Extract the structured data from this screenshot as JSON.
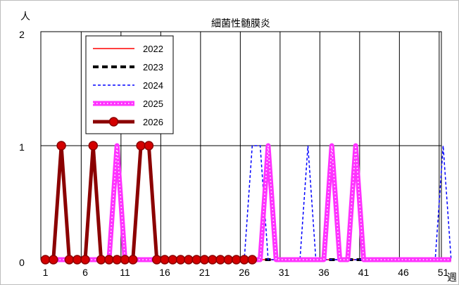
{
  "chart_data": {
    "type": "line",
    "title": "細菌性髄膜炎",
    "ylabel": "人",
    "xlabel": "週",
    "ylim": [
      0,
      2
    ],
    "xlim": [
      1,
      53
    ],
    "y_ticks": [
      "0",
      "1",
      "2"
    ],
    "x_ticks": [
      "1",
      "6",
      "11",
      "16",
      "21",
      "26",
      "31",
      "36",
      "41",
      "46",
      "51"
    ],
    "x_tick_values": [
      1,
      6,
      11,
      16,
      21,
      26,
      31,
      36,
      41,
      46,
      51
    ],
    "grid": {
      "vertical": true,
      "horizontal": true
    },
    "legend_position": "top-left",
    "series": [
      {
        "name": "2022",
        "color": "#ff0000",
        "style": "solid-thin",
        "x": [
          1,
          2,
          3,
          4,
          5,
          6,
          7,
          8,
          9,
          10,
          11,
          12,
          13,
          14,
          15,
          16,
          17,
          18,
          19,
          20,
          21,
          22,
          23,
          24,
          25,
          26,
          27,
          28,
          29,
          30,
          31,
          32,
          33,
          34,
          35,
          36,
          37,
          38,
          39,
          40,
          41,
          42,
          43,
          44,
          45,
          46,
          47,
          48,
          49,
          50,
          51,
          52
        ],
        "values": [
          0,
          0,
          0,
          0,
          0,
          0,
          0,
          0,
          0,
          0,
          0,
          0,
          0,
          0,
          0,
          0,
          0,
          0,
          0,
          0,
          0,
          0,
          0,
          0,
          0,
          0,
          0,
          0,
          0,
          0,
          0,
          0,
          0,
          0,
          0,
          0,
          0,
          0,
          0,
          0,
          0,
          0,
          0,
          0,
          0,
          0,
          0,
          0,
          0,
          0,
          0,
          0
        ]
      },
      {
        "name": "2023",
        "color": "#000000",
        "style": "dashed-thick",
        "x": [
          1,
          2,
          3,
          4,
          5,
          6,
          7,
          8,
          9,
          10,
          11,
          12,
          13,
          14,
          15,
          16,
          17,
          18,
          19,
          20,
          21,
          22,
          23,
          24,
          25,
          26,
          27,
          28,
          29,
          30,
          31,
          32,
          33,
          34,
          35,
          36,
          37,
          38,
          39,
          40,
          41,
          42,
          43,
          44,
          45,
          46,
          47,
          48,
          49,
          50,
          51,
          52
        ],
        "values": [
          0,
          0,
          0,
          0,
          0,
          0,
          0,
          0,
          0,
          0,
          0,
          0,
          0,
          0,
          0,
          0,
          0,
          0,
          0,
          0,
          0,
          0,
          0,
          0,
          0,
          0,
          0,
          0,
          0,
          0,
          0,
          0,
          0,
          0,
          0,
          0,
          0,
          0,
          0,
          0,
          0,
          0,
          0,
          0,
          0,
          0,
          0,
          0,
          0,
          0,
          0,
          0
        ]
      },
      {
        "name": "2024",
        "color": "#0000ff",
        "style": "dashed-thin",
        "x": [
          1,
          2,
          3,
          4,
          5,
          6,
          7,
          8,
          9,
          10,
          11,
          12,
          13,
          14,
          15,
          16,
          17,
          18,
          19,
          20,
          21,
          22,
          23,
          24,
          25,
          26,
          27,
          28,
          29,
          30,
          31,
          32,
          33,
          34,
          35,
          36,
          37,
          38,
          39,
          40,
          41,
          42,
          43,
          44,
          45,
          46,
          47,
          48,
          49,
          50,
          51,
          52
        ],
        "values": [
          0,
          0,
          0,
          0,
          0,
          0,
          0,
          0,
          0,
          0,
          0,
          0,
          0,
          0,
          0,
          0,
          0,
          0,
          0,
          0,
          0,
          0,
          0,
          0,
          0,
          0,
          1,
          1,
          0,
          0,
          0,
          0,
          0,
          1,
          0,
          0,
          0,
          0,
          0,
          0,
          0,
          0,
          0,
          0,
          0,
          0,
          0,
          0,
          0,
          0,
          1,
          0
        ]
      },
      {
        "name": "2025",
        "color": "#ff33ff",
        "style": "dotted-band",
        "x": [
          1,
          2,
          3,
          4,
          5,
          6,
          7,
          8,
          9,
          10,
          11,
          12,
          13,
          14,
          15,
          16,
          17,
          18,
          19,
          20,
          21,
          22,
          23,
          24,
          25,
          26,
          27,
          28,
          29,
          30,
          31,
          32,
          33,
          34,
          35,
          36,
          37,
          38,
          39,
          40,
          41,
          42,
          43,
          44,
          45,
          46,
          47,
          48,
          49,
          50,
          51,
          52
        ],
        "values": [
          0,
          0,
          0,
          0,
          0,
          0,
          0,
          0,
          0,
          1,
          0,
          0,
          0,
          0,
          0,
          0,
          0,
          0,
          0,
          0,
          0,
          0,
          0,
          0,
          0,
          0,
          0,
          0,
          1,
          0,
          0,
          0,
          0,
          0,
          0,
          0,
          1,
          0,
          0,
          1,
          0,
          0,
          0,
          0,
          0,
          0,
          0,
          0,
          0,
          0,
          0,
          0
        ]
      },
      {
        "name": "2026",
        "color": "#8b0000",
        "style": "solid-markers",
        "x": [
          1,
          2,
          3,
          4,
          5,
          6,
          7,
          8,
          9,
          10,
          11,
          12,
          13,
          14,
          15,
          16,
          17,
          18,
          19,
          20,
          21,
          22,
          23,
          24,
          25,
          26,
          27
        ],
        "values": [
          0,
          0,
          1,
          0,
          0,
          0,
          1,
          0,
          0,
          0,
          0,
          0,
          1,
          1,
          0,
          0,
          0,
          0,
          0,
          0,
          0,
          0,
          0,
          0,
          0,
          0,
          0
        ]
      }
    ]
  }
}
